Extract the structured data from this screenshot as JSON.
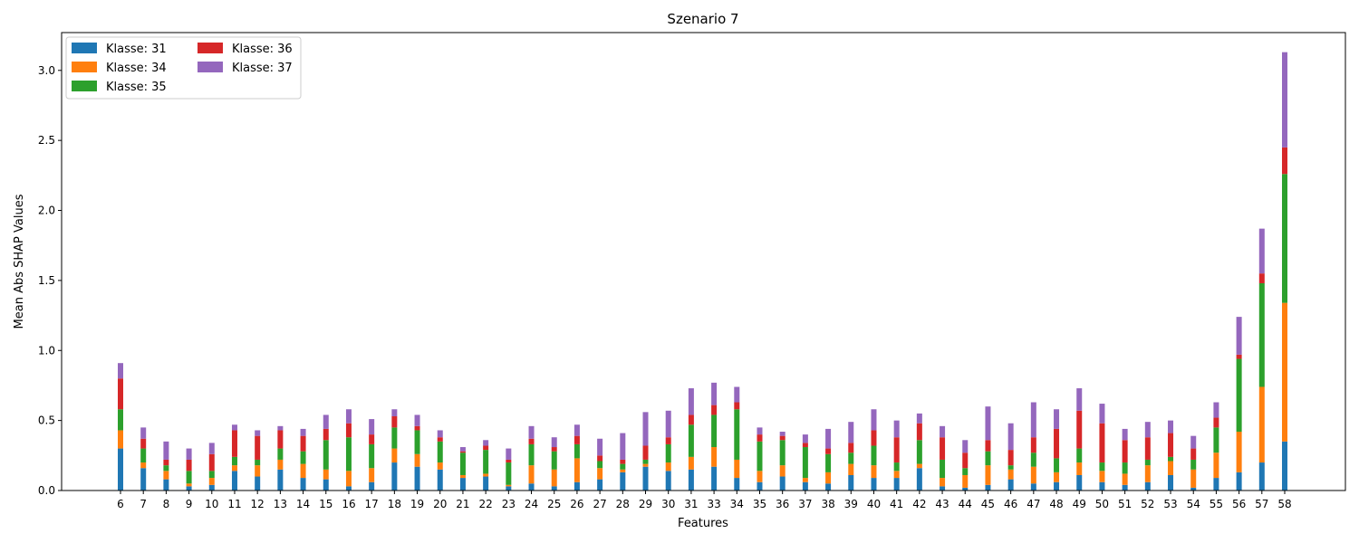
{
  "chart_data": {
    "type": "bar",
    "stacked": true,
    "title": "Szenario 7",
    "xlabel": "Features",
    "ylabel": "Mean Abs SHAP Values",
    "ylim": [
      0,
      3.27
    ],
    "yticks": [
      "0.0",
      "0.5",
      "1.0",
      "1.5",
      "2.0",
      "2.5",
      "3.0"
    ],
    "grid": false,
    "legend_position": "top-left",
    "categories": [
      "6",
      "7",
      "8",
      "9",
      "10",
      "11",
      "12",
      "13",
      "14",
      "15",
      "16",
      "17",
      "18",
      "19",
      "20",
      "21",
      "22",
      "23",
      "24",
      "25",
      "26",
      "27",
      "28",
      "29",
      "30",
      "31",
      "33",
      "34",
      "35",
      "36",
      "37",
      "38",
      "39",
      "40",
      "41",
      "42",
      "43",
      "44",
      "45",
      "46",
      "47",
      "48",
      "49",
      "50",
      "51",
      "52",
      "53",
      "54",
      "55",
      "56",
      "57",
      "58"
    ],
    "series": [
      {
        "name": "Klasse: 31",
        "color": "#1f77b4",
        "values": [
          0.3,
          0.16,
          0.08,
          0.03,
          0.04,
          0.14,
          0.1,
          0.15,
          0.09,
          0.08,
          0.03,
          0.06,
          0.2,
          0.17,
          0.15,
          0.09,
          0.1,
          0.03,
          0.05,
          0.03,
          0.06,
          0.08,
          0.13,
          0.17,
          0.14,
          0.15,
          0.17,
          0.09,
          0.06,
          0.1,
          0.06,
          0.05,
          0.11,
          0.09,
          0.09,
          0.16,
          0.03,
          0.02,
          0.04,
          0.08,
          0.05,
          0.06,
          0.11,
          0.06,
          0.04,
          0.06,
          0.11,
          0.02,
          0.09,
          0.13,
          0.2,
          0.35
        ]
      },
      {
        "name": "Klasse: 34",
        "color": "#ff7f0e",
        "values": [
          0.13,
          0.04,
          0.06,
          0.02,
          0.05,
          0.04,
          0.08,
          0.07,
          0.1,
          0.07,
          0.11,
          0.1,
          0.1,
          0.09,
          0.05,
          0.02,
          0.02,
          0.01,
          0.13,
          0.12,
          0.17,
          0.08,
          0.02,
          0.02,
          0.06,
          0.09,
          0.14,
          0.13,
          0.08,
          0.08,
          0.03,
          0.08,
          0.08,
          0.09,
          0.05,
          0.03,
          0.06,
          0.09,
          0.14,
          0.07,
          0.12,
          0.07,
          0.09,
          0.08,
          0.08,
          0.12,
          0.1,
          0.13,
          0.18,
          0.29,
          0.54,
          0.99
        ]
      },
      {
        "name": "Klasse: 35",
        "color": "#2ca02c",
        "values": [
          0.15,
          0.1,
          0.04,
          0.09,
          0.05,
          0.06,
          0.04,
          0.08,
          0.09,
          0.21,
          0.24,
          0.17,
          0.15,
          0.17,
          0.15,
          0.16,
          0.17,
          0.16,
          0.15,
          0.13,
          0.1,
          0.05,
          0.04,
          0.03,
          0.13,
          0.23,
          0.23,
          0.36,
          0.21,
          0.18,
          0.22,
          0.13,
          0.08,
          0.14,
          0.06,
          0.17,
          0.13,
          0.05,
          0.1,
          0.03,
          0.1,
          0.1,
          0.1,
          0.06,
          0.08,
          0.04,
          0.03,
          0.07,
          0.18,
          0.52,
          0.74,
          0.92
        ]
      },
      {
        "name": "Klasse: 36",
        "color": "#d62728",
        "values": [
          0.22,
          0.07,
          0.04,
          0.08,
          0.12,
          0.19,
          0.17,
          0.13,
          0.11,
          0.08,
          0.1,
          0.07,
          0.08,
          0.03,
          0.03,
          0.01,
          0.03,
          0.02,
          0.04,
          0.03,
          0.06,
          0.04,
          0.03,
          0.1,
          0.05,
          0.07,
          0.07,
          0.05,
          0.05,
          0.03,
          0.03,
          0.04,
          0.07,
          0.11,
          0.18,
          0.12,
          0.16,
          0.11,
          0.08,
          0.11,
          0.11,
          0.21,
          0.27,
          0.28,
          0.16,
          0.16,
          0.17,
          0.08,
          0.07,
          0.03,
          0.07,
          0.19
        ]
      },
      {
        "name": "Klasse: 37",
        "color": "#9467bd",
        "values": [
          0.11,
          0.08,
          0.13,
          0.08,
          0.08,
          0.04,
          0.04,
          0.03,
          0.05,
          0.1,
          0.1,
          0.11,
          0.05,
          0.08,
          0.05,
          0.03,
          0.04,
          0.08,
          0.09,
          0.07,
          0.08,
          0.12,
          0.19,
          0.24,
          0.19,
          0.19,
          0.16,
          0.11,
          0.05,
          0.03,
          0.06,
          0.14,
          0.15,
          0.15,
          0.12,
          0.07,
          0.08,
          0.09,
          0.24,
          0.19,
          0.25,
          0.14,
          0.16,
          0.14,
          0.08,
          0.11,
          0.09,
          0.09,
          0.11,
          0.27,
          0.32,
          0.68
        ]
      }
    ]
  }
}
